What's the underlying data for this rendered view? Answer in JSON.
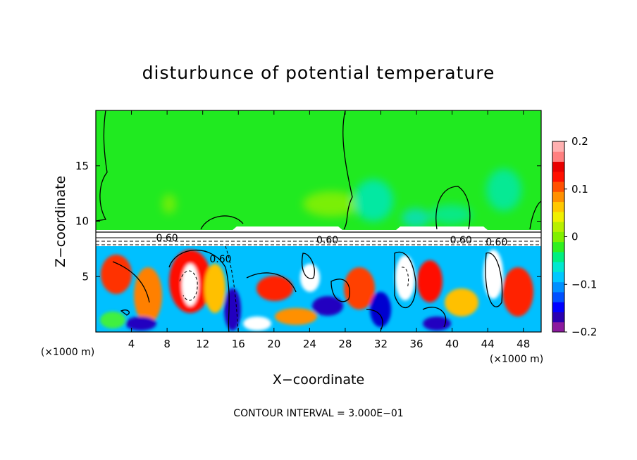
{
  "chart_data": {
    "type": "heatmap",
    "title": "disturbunce of potential temperature",
    "xlabel": "X−coordinate",
    "ylabel": "Z−coordinate",
    "x_unit_label_left": "(×1000 m)",
    "x_unit_label_right": "(×1000 m)",
    "footer": "CONTOUR INTERVAL = 3.000E−01",
    "xlim": [
      0,
      50
    ],
    "ylim": [
      0,
      20
    ],
    "x_ticks": [
      "4",
      "8",
      "12",
      "16",
      "20",
      "24",
      "28",
      "32",
      "36",
      "40",
      "44",
      "48"
    ],
    "x_tick_values": [
      4,
      8,
      12,
      16,
      20,
      24,
      28,
      32,
      36,
      40,
      44,
      48
    ],
    "y_ticks": [
      "5",
      "10",
      "15"
    ],
    "y_tick_values": [
      5,
      10,
      15
    ],
    "colorbar": {
      "range": [
        -0.2,
        0.2
      ],
      "tick_labels": [
        "0.2",
        "0.1",
        "0",
        "−0.1",
        "−0.2"
      ],
      "tick_values": [
        0.2,
        0.1,
        0,
        -0.1,
        -0.2
      ],
      "colors": [
        "#8b1a9e",
        "#2a00b0",
        "#0000ff",
        "#0050ff",
        "#0090ff",
        "#00c8ff",
        "#00e8d0",
        "#00f080",
        "#30f020",
        "#80f000",
        "#b8f000",
        "#f0f000",
        "#ffc800",
        "#ff9000",
        "#ff5000",
        "#ff1000",
        "#e80000",
        "#ff8080",
        "#ffb0b0"
      ]
    },
    "contour_labels": [
      "0.60",
      "0.60",
      "0.60",
      "0.60",
      "0.60"
    ],
    "contour_label_x": [
      8,
      26,
      41,
      45,
      14
    ],
    "contour_label_z": [
      8.2,
      8.0,
      8.0,
      7.8,
      6.3
    ]
  }
}
